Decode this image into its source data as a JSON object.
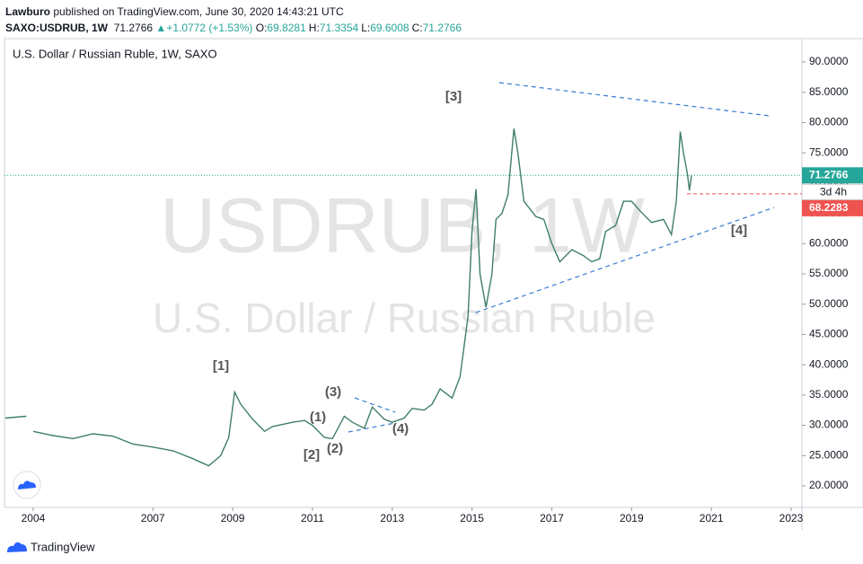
{
  "header": {
    "publisher": "Lawburo",
    "published": "published on TradingView.com, June 30, 2020 14:43:21 UTC",
    "symbol": "SAXO:USDRUB, 1W",
    "price": "71.2766",
    "change": "+1.0772 (+1.53%)",
    "ohlc": [
      {
        "label": "O:",
        "value": "69.8281"
      },
      {
        "label": "H:",
        "value": "71.3354"
      },
      {
        "label": "L:",
        "value": "69.6008"
      },
      {
        "label": "C:",
        "value": "71.2766"
      }
    ]
  },
  "footer": {
    "brand": "TradingView"
  },
  "chart_data": {
    "type": "line",
    "title": "U.S. Dollar / Russian Ruble, 1W, SAXO",
    "watermark": "USDRUB, 1W",
    "watermark_sub": "U.S. Dollar / Russian Ruble",
    "x": [
      2003.3,
      2003.83,
      2003.9,
      2004.0,
      2004.5,
      2005.0,
      2005.5,
      2006.0,
      2006.5,
      2007.0,
      2007.5,
      2008.0,
      2008.4,
      2008.7,
      2008.9,
      2009.05,
      2009.2,
      2009.5,
      2009.8,
      2010.0,
      2010.5,
      2010.8,
      2011.0,
      2011.3,
      2011.5,
      2011.8,
      2012.0,
      2012.3,
      2012.5,
      2012.8,
      2013.0,
      2013.3,
      2013.5,
      2013.8,
      2014.0,
      2014.2,
      2014.5,
      2014.7,
      2014.9,
      2015.0,
      2015.1,
      2015.2,
      2015.35,
      2015.5,
      2015.6,
      2015.75,
      2015.9,
      2016.05,
      2016.15,
      2016.3,
      2016.6,
      2016.8,
      2017.0,
      2017.2,
      2017.5,
      2017.8,
      2018.0,
      2018.2,
      2018.35,
      2018.6,
      2018.8,
      2019.0,
      2019.2,
      2019.5,
      2019.8,
      2020.0,
      2020.12,
      2020.22,
      2020.3,
      2020.4,
      2020.45,
      2020.5
    ],
    "series": [
      {
        "name": "USDRUB",
        "color": "#3f7f66",
        "values": [
          31.2,
          31.5,
          null,
          29.0,
          28.3,
          27.8,
          28.6,
          28.2,
          26.9,
          26.4,
          25.8,
          24.5,
          23.3,
          25.0,
          28,
          35.5,
          33.5,
          31.0,
          29.0,
          29.8,
          30.5,
          30.8,
          30.0,
          28.0,
          27.8,
          31.5,
          30.5,
          29.5,
          33.0,
          31.0,
          30.5,
          31.2,
          32.8,
          32.5,
          33.5,
          36.0,
          34.5,
          38,
          48,
          62,
          69,
          55,
          49.5,
          55,
          64,
          65,
          68,
          79,
          75,
          67,
          64.5,
          64,
          60,
          57,
          59,
          58,
          57,
          57.5,
          62,
          63,
          67,
          67,
          65.5,
          63.5,
          64,
          61.5,
          67,
          78.5,
          75,
          71.5,
          68.8,
          71.2766
        ]
      }
    ],
    "last_price": {
      "value": 71.2766,
      "label": "71.2766",
      "countdown": "3d 4h",
      "color": "#26a69a"
    },
    "marked_price": {
      "value": 68.2283,
      "label": "68.2283",
      "color": "#ef5350"
    },
    "annotations": [
      "[3]",
      "[1]",
      "[2]",
      "(1)",
      "(2)",
      "(3)",
      "(4)",
      "[4]"
    ],
    "xlim": [
      2003.28,
      2023.27
    ],
    "xticks": [
      2004,
      2007,
      2009,
      2011,
      2013,
      2015,
      2017,
      2019,
      2021,
      2023
    ],
    "ylim": [
      16.44,
      93.86
    ],
    "yticks": [
      {
        "value": 20,
        "label": "20.0000"
      },
      {
        "value": 25,
        "label": "25.0000"
      },
      {
        "value": 30,
        "label": "30.0000"
      },
      {
        "value": 35,
        "label": "35.0000"
      },
      {
        "value": 40,
        "label": "40.0000"
      },
      {
        "value": 45,
        "label": "45.0000"
      },
      {
        "value": 50,
        "label": "50.0000"
      },
      {
        "value": 55,
        "label": "55.0000"
      },
      {
        "value": 60,
        "label": "60.0000"
      },
      {
        "value": 65,
        "label": "65.0000"
      },
      {
        "value": 70,
        "label": "70.0000"
      },
      {
        "value": 75,
        "label": "75.0000"
      },
      {
        "value": 80,
        "label": "80.0000"
      },
      {
        "value": 85,
        "label": "85.0000"
      },
      {
        "value": 90,
        "label": "90.0000"
      }
    ],
    "grid": false
  }
}
